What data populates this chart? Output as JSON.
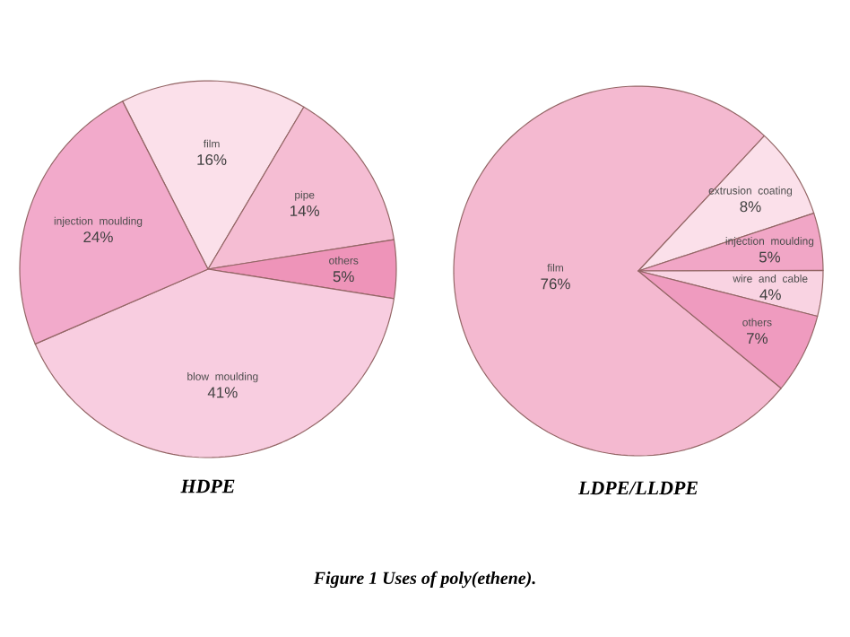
{
  "chart_data": [
    {
      "type": "pie",
      "title": "HDPE",
      "categories": [
        "film",
        "pipe",
        "others",
        "blow moulding",
        "injection moulding"
      ],
      "values": [
        16,
        14,
        5,
        41,
        24
      ],
      "value_labels": [
        "16%",
        "14%",
        "5%",
        "41%",
        "24%"
      ],
      "colors": [
        "#fbe0ea",
        "#f5bdd3",
        "#ee94b9",
        "#f8cde0",
        "#f2aacb"
      ]
    },
    {
      "type": "pie",
      "title": "LDPE/LLDPE",
      "categories": [
        "film",
        "extrusion coating",
        "injection moulding",
        "wire and cable",
        "others"
      ],
      "values": [
        76,
        8,
        5,
        4,
        7
      ],
      "value_labels": [
        "76%",
        "8%",
        "5%",
        "4%",
        "7%"
      ],
      "colors": [
        "#f4b9d0",
        "#fbe0ea",
        "#f1a6c6",
        "#f9d3e2",
        "#ef9bbf"
      ],
      "annotations": [
        "Figure 1  Uses of poly(ethene)."
      ]
    }
  ]
}
